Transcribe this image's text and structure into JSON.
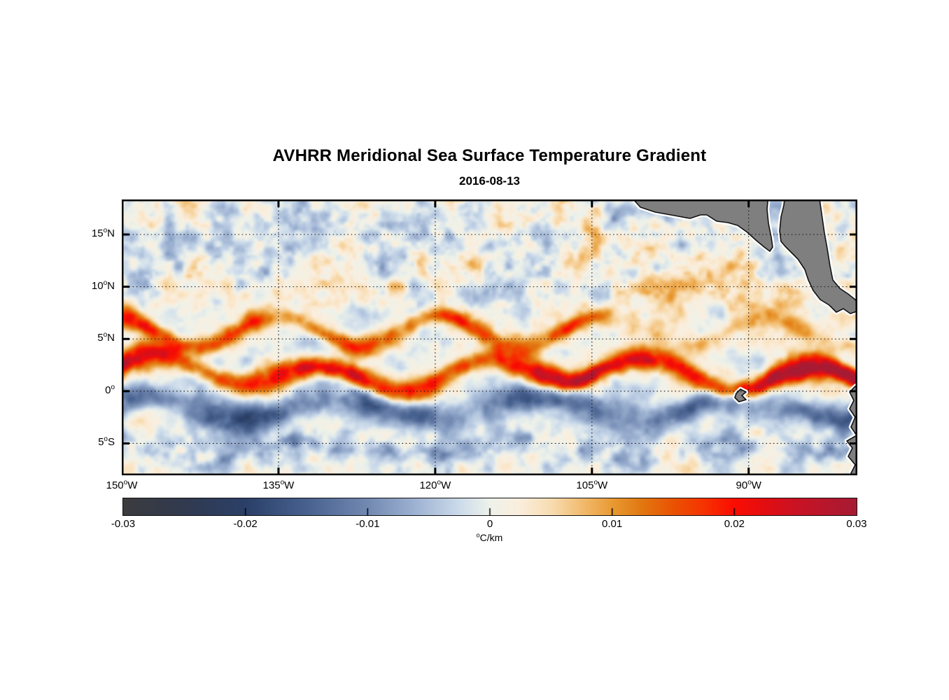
{
  "chart_data": {
    "type": "heatmap",
    "title": "AVHRR Meridional Sea Surface Temperature Gradient",
    "subtitle": "2016-08-13",
    "variable": "meridional sea surface temperature gradient",
    "units": "°C/km",
    "unit_label_parts": {
      "sup": "o",
      "text": "C/km"
    },
    "x_axis": {
      "kind": "longitude",
      "range_deg_west": [
        150,
        79.6
      ],
      "ticks_deg_west": [
        150,
        135,
        120,
        105,
        90
      ],
      "tick_label_parts": [
        {
          "text": "150",
          "sup": "o",
          "suffix": "W"
        },
        {
          "text": "135",
          "sup": "o",
          "suffix": "W"
        },
        {
          "text": "120",
          "sup": "o",
          "suffix": "W"
        },
        {
          "text": "105",
          "sup": "o",
          "suffix": "W"
        },
        {
          "text": "90",
          "sup": "o",
          "suffix": "W"
        }
      ]
    },
    "y_axis": {
      "kind": "latitude",
      "range_deg_north": [
        -8.05,
        18.35
      ],
      "ticks_deg_north": [
        15,
        10,
        5,
        0,
        -5
      ],
      "tick_label_parts": [
        {
          "text": "15",
          "sup": "o",
          "suffix": "N"
        },
        {
          "text": "10",
          "sup": "o",
          "suffix": "N"
        },
        {
          "text": "5",
          "sup": "o",
          "suffix": "N"
        },
        {
          "text": "0",
          "sup": "o",
          "suffix": ""
        },
        {
          "text": "5",
          "sup": "o",
          "suffix": "S"
        }
      ]
    },
    "grid": {
      "on": true,
      "style": "dotted",
      "color": "#1a1a1a"
    },
    "colorbar": {
      "orientation": "horizontal",
      "min": -0.03,
      "max": 0.03,
      "ticks": [
        -0.03,
        -0.02,
        -0.01,
        0,
        0.01,
        0.02,
        0.03
      ],
      "tick_labels": [
        "-0.03",
        "-0.02",
        "-0.01",
        "0",
        "0.01",
        "0.02",
        "0.03"
      ]
    },
    "colormap_stops": [
      [
        0.0,
        "#3c3c3e"
      ],
      [
        0.085,
        "#313a50"
      ],
      [
        0.167,
        "#2b4068"
      ],
      [
        0.25,
        "#47618f"
      ],
      [
        0.333,
        "#7289b1"
      ],
      [
        0.4,
        "#9fb4d3"
      ],
      [
        0.458,
        "#ccdbeb"
      ],
      [
        0.5,
        "#eef2ea"
      ],
      [
        0.54,
        "#fbeedd"
      ],
      [
        0.583,
        "#f8ddb2"
      ],
      [
        0.625,
        "#f2bc70"
      ],
      [
        0.667,
        "#e99a33"
      ],
      [
        0.708,
        "#e17710"
      ],
      [
        0.75,
        "#ea5303"
      ],
      [
        0.792,
        "#f63301"
      ],
      [
        0.833,
        "#fb0d02"
      ],
      [
        0.875,
        "#e30d12"
      ],
      [
        0.917,
        "#c91324"
      ],
      [
        1.0,
        "#a61b33"
      ]
    ],
    "field_model": {
      "description": "Tropical instability wave pattern: strong positive (red) meandering SST-gradient front near 0-3N intensifying toward the American coast, secondary positive front near 5-7N west of 110W, broad negative (blue) bands just south of the equator and near 5S, mottled blue/orange eddies north of 8N, gray land (Mexico, Central America, South America, Galapagos).",
      "background": [
        {
          "scale": 0.42,
          "amp": 0.0052,
          "ox": 3.0,
          "oy": 11.0
        },
        {
          "scale": 1.08,
          "amp": 0.0034,
          "ox": 17.0,
          "oy": 5.0
        }
      ],
      "north_mottle_boost": 0.75,
      "south_mottle_boost": 0.3,
      "fronts": [
        {
          "name": "equatorial-front",
          "base_lat": 1.7,
          "wave_amp": 1.25,
          "wave_k": 0.4,
          "wave_phase": 0.2,
          "wave2_amp": 0.55,
          "wave2_k": 0.155,
          "wave2_phase": 1.0,
          "strength": 0.0205,
          "strength_mod": 0.005,
          "strength_k": 0.27,
          "strength_phase": 2.1,
          "east_boost": 0.0065,
          "sigma": 1.05
        },
        {
          "name": "north-front",
          "base_lat": 5.7,
          "wave_amp": 1.45,
          "wave_k": 0.4,
          "wave_phase": 1.9,
          "strength": 0.0145,
          "strength_mod": 0.004,
          "strength_k": 0.6,
          "strength_phase": 1.0,
          "east_fade": 0.55,
          "sigma": 0.95
        },
        {
          "name": "south-equatorial-blue-band",
          "base_lat": -1.7,
          "wave_amp": 1.05,
          "wave_k": 0.33,
          "wave_phase": 0.9,
          "strength": -0.0125,
          "strength_mod": -0.004,
          "strength_k": 0.45,
          "strength_phase": 2.4,
          "sigma": 1.35
        },
        {
          "name": "far-south-blue-band",
          "base_lat": -5.4,
          "wave_amp": 0.7,
          "wave_k": 0.3,
          "wave_phase": 2.2,
          "strength": -0.0105,
          "sigma": 1.15,
          "patchy": true
        }
      ],
      "itcz_orange": {
        "lat": 9.5,
        "sigma": 3.2,
        "amp": 0.005,
        "east_start_u": 38
      }
    },
    "land": {
      "fill": "#7f7f7f",
      "outline": "#111111",
      "halo": "#ffffff",
      "polygons": [
        {
          "name": "mexico-guatemala",
          "points": [
            [
              724,
              -8
            ],
            [
              741,
              11
            ],
            [
              762,
              18
            ],
            [
              790,
              23
            ],
            [
              812,
              27
            ],
            [
              827,
              22
            ],
            [
              836,
              22
            ],
            [
              850,
              31
            ],
            [
              866,
              33
            ],
            [
              880,
              37
            ],
            [
              894,
              47
            ],
            [
              906,
              58
            ],
            [
              918,
              68
            ],
            [
              926,
              74
            ],
            [
              930,
              68
            ],
            [
              928,
              54
            ],
            [
              924,
              34
            ],
            [
              922,
              14
            ],
            [
              924,
              -8
            ]
          ]
        },
        {
          "name": "central-america",
          "points": [
            [
              948,
              -8
            ],
            [
              996,
              -8
            ],
            [
              1000,
              20
            ],
            [
              1004,
              48
            ],
            [
              1008,
              70
            ],
            [
              1012,
              95
            ],
            [
              1016,
              115
            ],
            [
              1026,
              127
            ],
            [
              1038,
              135
            ],
            [
              1048,
              143
            ],
            [
              1058,
              157
            ],
            [
              1041,
              163
            ],
            [
              1031,
              156
            ],
            [
              1021,
              161
            ],
            [
              1011,
              151
            ],
            [
              998,
              143
            ],
            [
              988,
              130
            ],
            [
              981,
              115
            ],
            [
              976,
              100
            ],
            [
              966,
              85
            ],
            [
              956,
              75
            ],
            [
              948,
              67
            ],
            [
              942,
              60
            ],
            [
              940,
              45
            ],
            [
              942,
              25
            ],
            [
              946,
              8
            ]
          ]
        },
        {
          "name": "south-america",
          "points": [
            [
              1062,
              258
            ],
            [
              1048,
              267
            ],
            [
              1040,
              275
            ],
            [
              1046,
              287
            ],
            [
              1040,
              299
            ],
            [
              1048,
              311
            ],
            [
              1042,
              325
            ],
            [
              1050,
              337
            ],
            [
              1036,
              345
            ],
            [
              1044,
              355
            ],
            [
              1038,
              367
            ],
            [
              1048,
              379
            ],
            [
              1042,
              391
            ],
            [
              1046,
              402
            ],
            [
              1062,
              402
            ]
          ]
        },
        {
          "name": "galapagos",
          "points": [
            [
              878,
              277
            ],
            [
              884,
              271
            ],
            [
              892,
              275
            ],
            [
              886,
              280
            ],
            [
              892,
              286
            ],
            [
              882,
              289
            ],
            [
              876,
              283
            ]
          ]
        }
      ]
    },
    "legend_position": "bottom",
    "plot_background": "#ffffff"
  }
}
